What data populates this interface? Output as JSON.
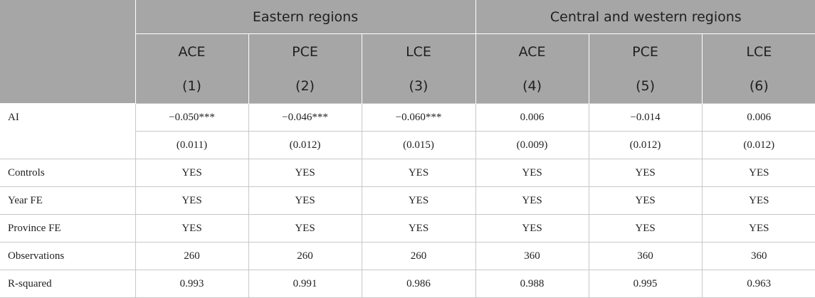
{
  "table": {
    "groups": [
      {
        "label": "Eastern regions"
      },
      {
        "label": "Central and western regions"
      }
    ],
    "vars": [
      "ACE",
      "PCE",
      "LCE",
      "ACE",
      "PCE",
      "LCE"
    ],
    "nums": [
      "(1)",
      "(2)",
      "(3)",
      "(4)",
      "(5)",
      "(6)"
    ],
    "rows": [
      {
        "label": "AI",
        "values": [
          "−0.050***",
          "−0.046***",
          "−0.060***",
          "0.006",
          "−0.014",
          "0.006"
        ]
      },
      {
        "label": "",
        "values": [
          "(0.011)",
          "(0.012)",
          "(0.015)",
          "(0.009)",
          "(0.012)",
          "(0.012)"
        ]
      },
      {
        "label": "Controls",
        "values": [
          "YES",
          "YES",
          "YES",
          "YES",
          "YES",
          "YES"
        ]
      },
      {
        "label": "Year FE",
        "values": [
          "YES",
          "YES",
          "YES",
          "YES",
          "YES",
          "YES"
        ]
      },
      {
        "label": "Province FE",
        "values": [
          "YES",
          "YES",
          "YES",
          "YES",
          "YES",
          "YES"
        ]
      },
      {
        "label": "Observations",
        "values": [
          "260",
          "260",
          "260",
          "360",
          "360",
          "360"
        ]
      },
      {
        "label": "R-squared",
        "values": [
          "0.993",
          "0.991",
          "0.986",
          "0.988",
          "0.995",
          "0.963"
        ]
      }
    ]
  }
}
